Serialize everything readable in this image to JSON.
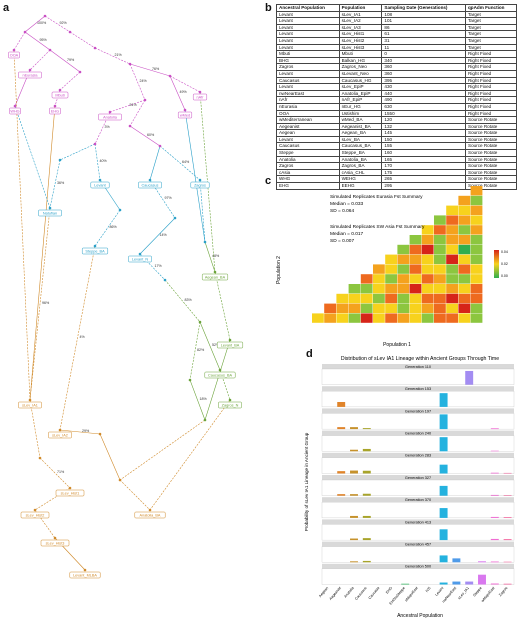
{
  "panels": {
    "a": "a",
    "b": "b",
    "c": "c",
    "d": "d"
  },
  "tree": {
    "labels": [
      "OOA",
      "nEurasia",
      "Mbuti",
      "WHG",
      "EHG",
      "nAfr",
      "Anatolia",
      "wMed",
      "Levant",
      "Caucasus",
      "Zagros",
      "Natufian",
      "Steppe_BA",
      "Levant_N",
      "Aegean_BA",
      "Levant_BA",
      "Caucasus_BA",
      "Zagros_N",
      "sLev_IA1",
      "sLev_IA2",
      "sLev_Hist1",
      "sLev_Hist2",
      "sLev_Hist3",
      "Levant_MLBA",
      "Anatolia_BA"
    ],
    "edge_labels": [
      "100%",
      "92%",
      "95%",
      "79%",
      "21%",
      "76%",
      "24%",
      "51%",
      "49%",
      "3%",
      "60%",
      "40%",
      "64%",
      "36%",
      "97%",
      "86%",
      "14%",
      "17%",
      "48%",
      "83%",
      "52%",
      "82%",
      "18%",
      "96%",
      "4%",
      "29%",
      "71%"
    ]
  },
  "table": {
    "headers": [
      "Ancestral Population",
      "Population",
      "Sampling Date (Generations)",
      "qpAdm Function"
    ],
    "rows": [
      [
        "Levant",
        "sLev_IA1",
        "108",
        "Target"
      ],
      [
        "Levant",
        "sLev_IA2",
        "101",
        "Target"
      ],
      [
        "Levant",
        "sLev_IA3",
        "86",
        "Target"
      ],
      [
        "Levant",
        "sLev_Hist1",
        "61",
        "Target"
      ],
      [
        "Levant",
        "sLev_Hist2",
        "31",
        "Target"
      ],
      [
        "Levant",
        "sLev_Hist3",
        "11",
        "Target"
      ],
      [
        "Mbuti",
        "Mbuti",
        "0",
        "Right Fixed"
      ],
      [
        "BHG",
        "Balkan_HG",
        "340",
        "Right Fixed"
      ],
      [
        "Zagros",
        "Zagros_Neo",
        "360",
        "Right Fixed"
      ],
      [
        "Levant",
        "sLevant_Neo",
        "360",
        "Right Fixed"
      ],
      [
        "Caucasus",
        "Caucasus_HG",
        "395",
        "Right Fixed"
      ],
      [
        "Levant",
        "sLev_EpiP",
        "430",
        "Right Fixed"
      ],
      [
        "nwNearEast",
        "Anatolia_EpiP",
        "440",
        "Right Fixed"
      ],
      [
        "nAfr",
        "nAfr_EpiP",
        "490",
        "Right Fixed"
      ],
      [
        "nEurasia",
        "nEur_HG",
        "630",
        "Right Fixed"
      ],
      [
        "OOA",
        "Ustishim",
        "1550",
        "Right Fixed"
      ],
      [
        "wMediterranean",
        "wMed_BA",
        "120",
        "Source Rotate"
      ],
      [
        "Aegeanist",
        "Aegeanist_BA",
        "132",
        "Source Rotate"
      ],
      [
        "Aegean",
        "Aegean_BA",
        "145",
        "Source Rotate"
      ],
      [
        "Levant",
        "sLev_BA",
        "150",
        "Source Rotate"
      ],
      [
        "Caucasus",
        "Caucasus_BA",
        "155",
        "Source Rotate"
      ],
      [
        "Steppe",
        "Steppe_BA",
        "160",
        "Source Rotate"
      ],
      [
        "Anatolia",
        "Anatolia_BA",
        "165",
        "Source Rotate"
      ],
      [
        "Zagros",
        "Zagros_BA",
        "170",
        "Source Rotate"
      ],
      [
        "cAsia",
        "cAsia_CHL",
        "175",
        "Source Rotate"
      ],
      [
        "WHG",
        "WEHG",
        "265",
        "Source Rotate"
      ],
      [
        "EHG",
        "EEHG",
        "295",
        "Source Rotate"
      ]
    ]
  },
  "heatmap": {
    "title1": "Simulated Replicates Eurasia Fst Summary",
    "stats1": [
      "Median = 0.033",
      "SD = 0.064"
    ],
    "title2": "Simulated Replicates SW Asia Fst Summary",
    "stats2": [
      "Median = 0.017",
      "SD = 0.007"
    ],
    "xlabel": "Population 1",
    "ylabel": "Population 2",
    "legend": [
      "0.04",
      "0.02",
      "0.00"
    ]
  },
  "chart_data": {
    "type": "bar",
    "title": "Distribution of sLev IA1 Lineage within Ancient Groups Through Time",
    "xlabel": "Ancestral Population",
    "ylabel": "Probability of sLev IA1 Lineage in Ancient Group",
    "categories": [
      "Aegean",
      "Aegeanist",
      "Anatolia",
      "Caucasus",
      "Caucasia",
      "EHG",
      "EHGtoSteppe",
      "eMapvEast",
      "IVS",
      "Levant",
      "nwNearEast",
      "sLev_IA1",
      "Steppe",
      "wMapvEast",
      "Zagros"
    ],
    "ylim": [
      0,
      0.8
    ],
    "generations": [
      {
        "label": "Generation 110",
        "values": [
          0,
          0,
          0,
          0,
          0,
          0,
          0,
          0,
          0,
          0,
          0,
          0.7,
          0,
          0,
          0
        ]
      },
      {
        "label": "Generation 153",
        "values": [
          0,
          0.25,
          0,
          0,
          0,
          0,
          0,
          0,
          0,
          0.7,
          0,
          0,
          0,
          0,
          0
        ]
      },
      {
        "label": "Generation 197",
        "values": [
          0,
          0.1,
          0.1,
          0.05,
          0,
          0,
          0,
          0,
          0,
          0.75,
          0,
          0,
          0,
          0.04,
          0
        ]
      },
      {
        "label": "Generation 240",
        "values": [
          0,
          0,
          0.08,
          0.12,
          0,
          0,
          0,
          0,
          0,
          0.72,
          0,
          0,
          0,
          0.03,
          0
        ]
      },
      {
        "label": "Generation 283",
        "values": [
          0,
          0.12,
          0.15,
          0.14,
          0,
          0,
          0,
          0,
          0,
          0.45,
          0,
          0,
          0,
          0.04,
          0.03
        ]
      },
      {
        "label": "Generation 327",
        "values": [
          0,
          0.08,
          0.08,
          0.1,
          0,
          0,
          0,
          0,
          0,
          0.5,
          0,
          0,
          0,
          0.04,
          0.03
        ]
      },
      {
        "label": "Generation 370",
        "values": [
          0,
          0,
          0.1,
          0.1,
          0,
          0,
          0,
          0,
          0,
          0.5,
          0,
          0,
          0,
          0.05,
          0.04
        ]
      },
      {
        "label": "Generation 413",
        "values": [
          0,
          0,
          0.08,
          0.1,
          0,
          0,
          0,
          0,
          0,
          0.55,
          0,
          0,
          0,
          0.06,
          0.05
        ]
      },
      {
        "label": "Generation 457",
        "values": [
          0,
          0,
          0.05,
          0.07,
          0,
          0,
          0,
          0,
          0,
          0.35,
          0.2,
          0,
          0.05,
          0.04,
          0.03
        ]
      },
      {
        "label": "Generation 500",
        "values": [
          0,
          0,
          0,
          0,
          0,
          0,
          0.04,
          0,
          0,
          0.1,
          0.15,
          0.15,
          0.5,
          0.05,
          0.04
        ]
      }
    ],
    "colors": [
      "#f26f6f",
      "#e0842a",
      "#c6922b",
      "#a8a42a",
      "#8bb233",
      "#5cb840",
      "#3dbb6a",
      "#2dbf9a",
      "#2bb9c1",
      "#24b2df",
      "#4f9be9",
      "#a38cf2",
      "#d978ef",
      "#f06cd3",
      "#f46aa0"
    ]
  }
}
